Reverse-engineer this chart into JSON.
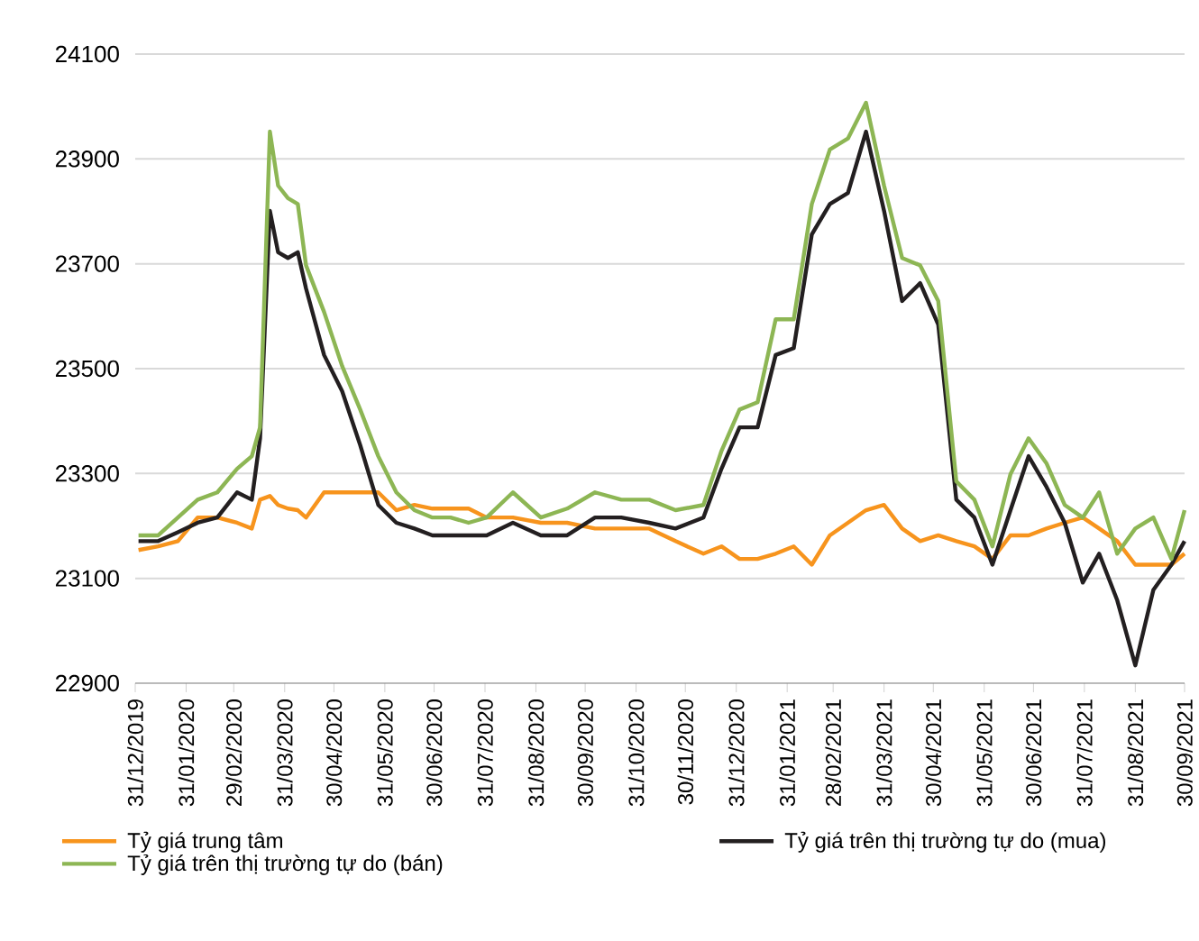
{
  "chart_data": {
    "type": "line",
    "x": [
      "2020-01-02",
      "2020-01-14",
      "2020-01-26",
      "2020-02-07",
      "2020-02-19",
      "2020-03-02",
      "2020-03-11",
      "2020-03-16",
      "2020-03-22",
      "2020-03-27",
      "2020-04-02",
      "2020-04-08",
      "2020-04-13",
      "2020-04-24",
      "2020-05-05",
      "2020-05-16",
      "2020-05-27",
      "2020-06-07",
      "2020-06-18",
      "2020-06-29",
      "2020-07-10",
      "2020-07-21",
      "2020-08-01",
      "2020-08-17",
      "2020-09-03",
      "2020-09-19",
      "2020-10-06",
      "2020-10-22",
      "2020-11-08",
      "2020-11-24",
      "2020-12-11",
      "2020-12-22",
      "2021-01-02",
      "2021-01-13",
      "2021-01-24",
      "2021-02-04",
      "2021-02-15",
      "2021-02-26",
      "2021-03-09",
      "2021-03-20",
      "2021-03-31",
      "2021-04-11",
      "2021-04-22",
      "2021-05-03",
      "2021-05-14",
      "2021-05-25",
      "2021-06-05",
      "2021-06-16",
      "2021-06-27",
      "2021-07-08",
      "2021-07-19",
      "2021-07-30",
      "2021-08-09",
      "2021-08-20",
      "2021-08-31",
      "2021-09-11",
      "2021-09-22",
      "2021-09-30"
    ],
    "series": [
      {
        "name": "Tỷ giá trung tâm",
        "color": "#f7941d",
        "values": [
          23154,
          23161,
          23171,
          23216,
          23216,
          23206,
          23195,
          23250,
          23257,
          23240,
          23233,
          23230,
          23216,
          23264,
          23264,
          23264,
          23264,
          23230,
          23240,
          23233,
          23233,
          23233,
          23216,
          23216,
          23206,
          23206,
          23195,
          23195,
          23195,
          23171,
          23147,
          23161,
          23137,
          23137,
          23147,
          23161,
          23126,
          23182,
          23206,
          23230,
          23240,
          23195,
          23171,
          23182,
          23171,
          23161,
          23137,
          23182,
          23182,
          23195,
          23206,
          23216,
          23195,
          23171,
          23126,
          23126,
          23126,
          23147
        ]
      },
      {
        "name": "Tỷ giá trên thị trường tự do (mua)",
        "color": "#231f20",
        "values": [
          23171,
          23171,
          23188,
          23206,
          23216,
          23264,
          23250,
          23367,
          23801,
          23722,
          23711,
          23722,
          23653,
          23526,
          23457,
          23354,
          23240,
          23206,
          23195,
          23182,
          23182,
          23182,
          23182,
          23206,
          23182,
          23182,
          23216,
          23216,
          23206,
          23195,
          23216,
          23309,
          23388,
          23388,
          23526,
          23539,
          23756,
          23814,
          23835,
          23952,
          23801,
          23629,
          23663,
          23584,
          23250,
          23216,
          23126,
          23230,
          23333,
          23274,
          23206,
          23092,
          23147,
          23058,
          22934,
          23078,
          23126,
          23171
        ]
      },
      {
        "name": "Tỷ giá trên thị trường tự do (bán)",
        "color": "#8db654",
        "values": [
          23182,
          23182,
          23216,
          23250,
          23264,
          23309,
          23333,
          23388,
          23952,
          23849,
          23825,
          23814,
          23697,
          23608,
          23505,
          23422,
          23333,
          23264,
          23230,
          23216,
          23216,
          23206,
          23216,
          23264,
          23216,
          23233,
          23264,
          23250,
          23250,
          23230,
          23240,
          23343,
          23422,
          23436,
          23594,
          23594,
          23814,
          23918,
          23939,
          24007,
          23849,
          23711,
          23697,
          23629,
          23285,
          23250,
          23161,
          23299,
          23367,
          23319,
          23240,
          23216,
          23264,
          23147,
          23195,
          23216,
          23137,
          23230
        ]
      }
    ],
    "ylim": [
      22900,
      24100
    ],
    "yticks": [
      22900,
      23100,
      23300,
      23500,
      23700,
      23900,
      24100
    ],
    "xlim": [
      "2019-12-31",
      "2021-09-30"
    ],
    "xticks": [
      {
        "value": "2019-12-31",
        "label": "31/12/2019"
      },
      {
        "value": "2020-01-31",
        "label": "31/01/2020"
      },
      {
        "value": "2020-02-29",
        "label": "29/02/2020"
      },
      {
        "value": "2020-03-31",
        "label": "31/03/2020"
      },
      {
        "value": "2020-04-30",
        "label": "30/04/2020"
      },
      {
        "value": "2020-05-31",
        "label": "31/05/2020"
      },
      {
        "value": "2020-06-30",
        "label": "30/06/2020"
      },
      {
        "value": "2020-07-31",
        "label": "31/07/2020"
      },
      {
        "value": "2020-08-31",
        "label": "31/08/2020"
      },
      {
        "value": "2020-09-30",
        "label": "30/09/2020"
      },
      {
        "value": "2020-10-31",
        "label": "31/10/2020"
      },
      {
        "value": "2020-11-30",
        "label": "30/11/2020"
      },
      {
        "value": "2020-12-31",
        "label": "31/12/2020"
      },
      {
        "value": "2021-01-31",
        "label": "31/01/2021"
      },
      {
        "value": "2021-02-28",
        "label": "28/02/2021"
      },
      {
        "value": "2021-03-31",
        "label": "31/03/2021"
      },
      {
        "value": "2021-04-30",
        "label": "30/04/2021"
      },
      {
        "value": "2021-05-31",
        "label": "31/05/2021"
      },
      {
        "value": "2021-06-30",
        "label": "30/06/2021"
      },
      {
        "value": "2021-07-31",
        "label": "31/07/2021"
      },
      {
        "value": "2021-08-31",
        "label": "31/08/2021"
      },
      {
        "value": "2021-09-30",
        "label": "30/09/2021"
      }
    ],
    "grid": "y",
    "legend": "bottom",
    "marker": "none",
    "line_style": "solid"
  }
}
